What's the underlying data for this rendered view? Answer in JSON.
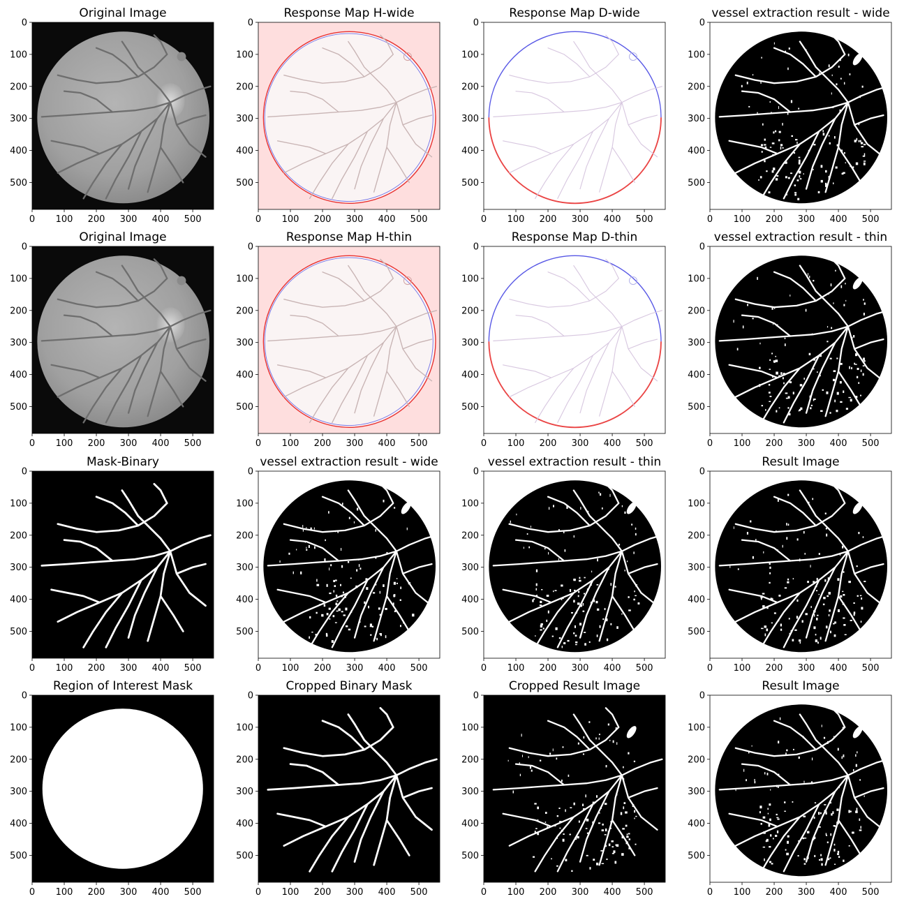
{
  "figure": {
    "x_ticks": [
      "0",
      "100",
      "200",
      "300",
      "400",
      "500"
    ],
    "y_ticks": [
      "0",
      "100",
      "200",
      "300",
      "400",
      "500"
    ],
    "panels": [
      {
        "title": "Original Image",
        "kind": "fundus"
      },
      {
        "title": "Response Map H-wide",
        "kind": "response-h"
      },
      {
        "title": "Response Map D-wide",
        "kind": "response-d"
      },
      {
        "title": "vessel extraction result - wide",
        "kind": "vessel-dense"
      },
      {
        "title": "Original Image",
        "kind": "fundus"
      },
      {
        "title": "Response Map H-thin",
        "kind": "response-h"
      },
      {
        "title": "Response Map D-thin",
        "kind": "response-d"
      },
      {
        "title": "vessel extraction result - thin",
        "kind": "vessel-dense"
      },
      {
        "title": "Mask-Binary",
        "kind": "mask-binary"
      },
      {
        "title": "vessel extraction result - wide",
        "kind": "vessel-dense"
      },
      {
        "title": "vessel extraction result - thin",
        "kind": "vessel-dense"
      },
      {
        "title": "Result Image",
        "kind": "vessel-dense"
      },
      {
        "title": "Region of Interest Mask",
        "kind": "roi"
      },
      {
        "title": "Cropped Binary Mask",
        "kind": "mask-binary"
      },
      {
        "title": "Cropped Result Image",
        "kind": "vessel-cropped"
      },
      {
        "title": "Result Image",
        "kind": "vessel-dense"
      }
    ],
    "colors": {
      "fundus_bg": "#0a0a0a",
      "fundus_disc": "#a8a8a8",
      "response_h_bg": "#fedede",
      "response_edge_red": "#e83030",
      "response_edge_blue": "#3a3ae0",
      "mask_bg": "#000000",
      "mask_fg": "#ffffff"
    }
  }
}
